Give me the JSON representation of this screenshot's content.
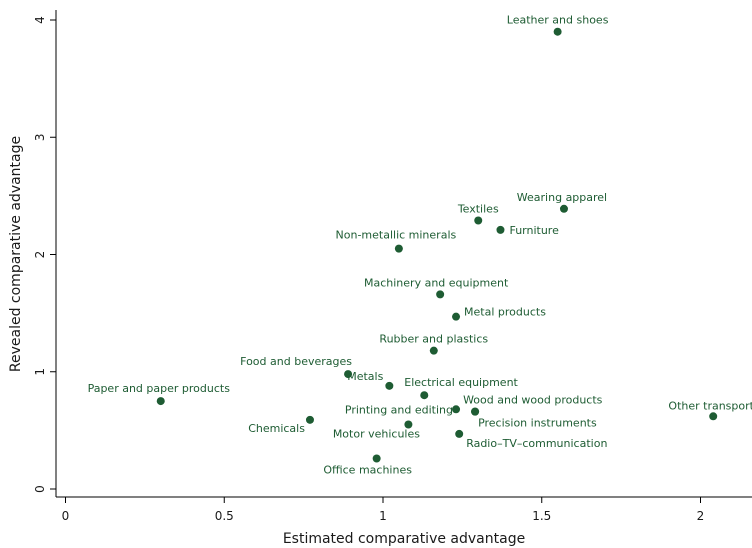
{
  "chart_data": {
    "type": "scatter",
    "xlabel": "Estimated comparative advantage",
    "ylabel": "Revealed comparative advantage",
    "xlim": [
      -0.03,
      2.17
    ],
    "ylim": [
      -0.03,
      4.08
    ],
    "xticks": [
      0,
      0.5,
      1,
      1.5,
      2
    ],
    "xtick_labels": [
      "0",
      "0.5",
      "1",
      "1.5",
      "2"
    ],
    "yticks": [
      0,
      1,
      2,
      3,
      4
    ],
    "ytick_labels": [
      "0",
      "1",
      "2",
      "3",
      "4"
    ],
    "grid": false,
    "color": "#1e5c33",
    "points": [
      {
        "label": "Leather and shoes",
        "x": 1.55,
        "y": 3.9
      },
      {
        "label": "Wearing apparel",
        "x": 1.57,
        "y": 2.39
      },
      {
        "label": "Textiles",
        "x": 1.3,
        "y": 2.29
      },
      {
        "label": "Furniture",
        "x": 1.37,
        "y": 2.21
      },
      {
        "label": "Non-metallic minerals",
        "x": 1.05,
        "y": 2.05
      },
      {
        "label": "Machinery and equipment",
        "x": 1.18,
        "y": 1.66
      },
      {
        "label": "Metal products",
        "x": 1.23,
        "y": 1.47
      },
      {
        "label": "Rubber and plastics",
        "x": 1.16,
        "y": 1.18
      },
      {
        "label": "Food and beverages",
        "x": 0.89,
        "y": 0.98
      },
      {
        "label": "Metals",
        "x": 1.02,
        "y": 0.88
      },
      {
        "label": "Electrical equipment",
        "x": 1.13,
        "y": 0.8
      },
      {
        "label": "Paper and paper products",
        "x": 0.3,
        "y": 0.75
      },
      {
        "label": "Wood and wood products",
        "x": 1.29,
        "y": 0.66
      },
      {
        "label": "Printing and editing",
        "x": 1.23,
        "y": 0.68
      },
      {
        "label": "Chemicals",
        "x": 0.77,
        "y": 0.59
      },
      {
        "label": "Precision instruments",
        "x": 1.29,
        "y": 0.66
      },
      {
        "label": "Motor vehicules",
        "x": 1.08,
        "y": 0.55
      },
      {
        "label": "Radio–TV–communication",
        "x": 1.24,
        "y": 0.47
      },
      {
        "label": "Office machines",
        "x": 0.98,
        "y": 0.26
      },
      {
        "label": "Other transport",
        "x": 2.04,
        "y": 0.62
      }
    ]
  }
}
